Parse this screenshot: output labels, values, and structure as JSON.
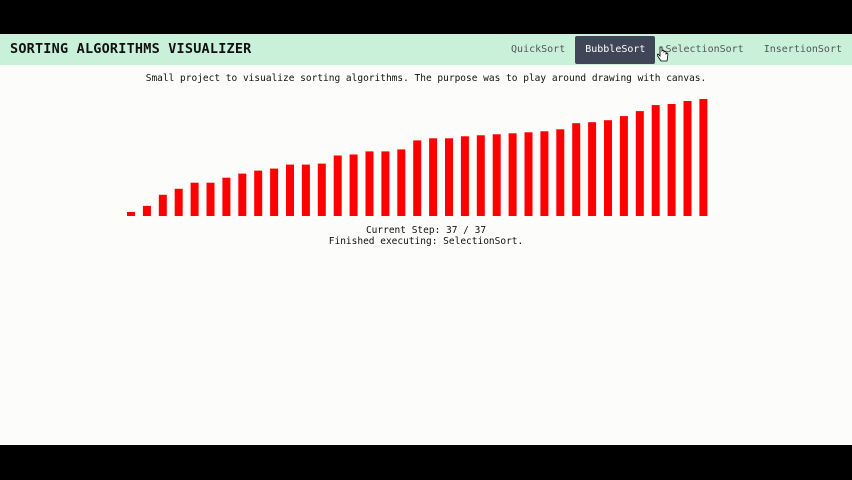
{
  "header": {
    "title": "SORTING ALGORITHMS VISUALIZER",
    "nav": [
      {
        "label": "QuickSort",
        "active": false
      },
      {
        "label": "BubbleSort",
        "active": true
      },
      {
        "label": "SelectionSort",
        "active": false
      },
      {
        "label": "InsertionSort",
        "active": false
      }
    ]
  },
  "description": "Small project to visualize sorting algorithms. The purpose was to play around drawing with canvas.",
  "status": {
    "step_prefix": "Current Step:",
    "current_step": 37,
    "total_steps": 37,
    "step_text": "Current Step: 37 / 37",
    "message": "Finished executing: SelectionSort."
  },
  "colors": {
    "bar": "#ff0000",
    "navbar": "#c9f1d9",
    "active_tab": "#3e4658"
  },
  "chart_data": {
    "type": "bar",
    "values": [
      4,
      10,
      21,
      27,
      33,
      33,
      38,
      42,
      45,
      47,
      51,
      51,
      52,
      60,
      61,
      64,
      64,
      66,
      75,
      77,
      77,
      79,
      80,
      81,
      82,
      83,
      84,
      86,
      92,
      93,
      95,
      99,
      104,
      110,
      111,
      114,
      116
    ],
    "ylim": [
      0,
      116
    ]
  }
}
